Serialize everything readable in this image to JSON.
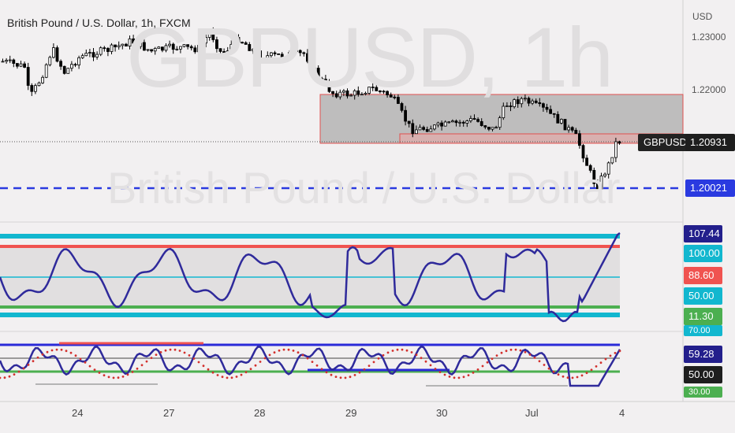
{
  "header": {
    "title": "British Pound / U.S. Dollar, 1h, FXCM"
  },
  "watermark": {
    "symbol_tf": "GBPUSD, 1h",
    "name": "British Pound / U.S. Dollar"
  },
  "price_axis": {
    "currency": "USD",
    "ticks": [
      "1.23000",
      "1.22000"
    ]
  },
  "tags": {
    "symbol": "GBPUSD",
    "last_price": "1.20931",
    "line_price": "1.20021",
    "osc1": [
      "107.44",
      "100.00",
      "88.60",
      "50.00",
      "11.30"
    ],
    "osc2": [
      "70.00",
      "59.28",
      "50.00",
      "30.00"
    ]
  },
  "time_axis": [
    "24",
    "27",
    "28",
    "29",
    "30",
    "Jul",
    "4"
  ],
  "colors": {
    "up": "#ffffff",
    "down": "#000000",
    "wick": "#000000",
    "zone_fill": "#a9a9a9",
    "zone_border": "#e0514f",
    "dashed_line": "#2a3ae0",
    "osc_line": "#2f2a9b",
    "cyan": "#12b7cf",
    "red": "#f05350",
    "green": "#4caf50",
    "tag_blue_dark": "#231f8c",
    "tag_black": "#1e1e1e"
  }
}
